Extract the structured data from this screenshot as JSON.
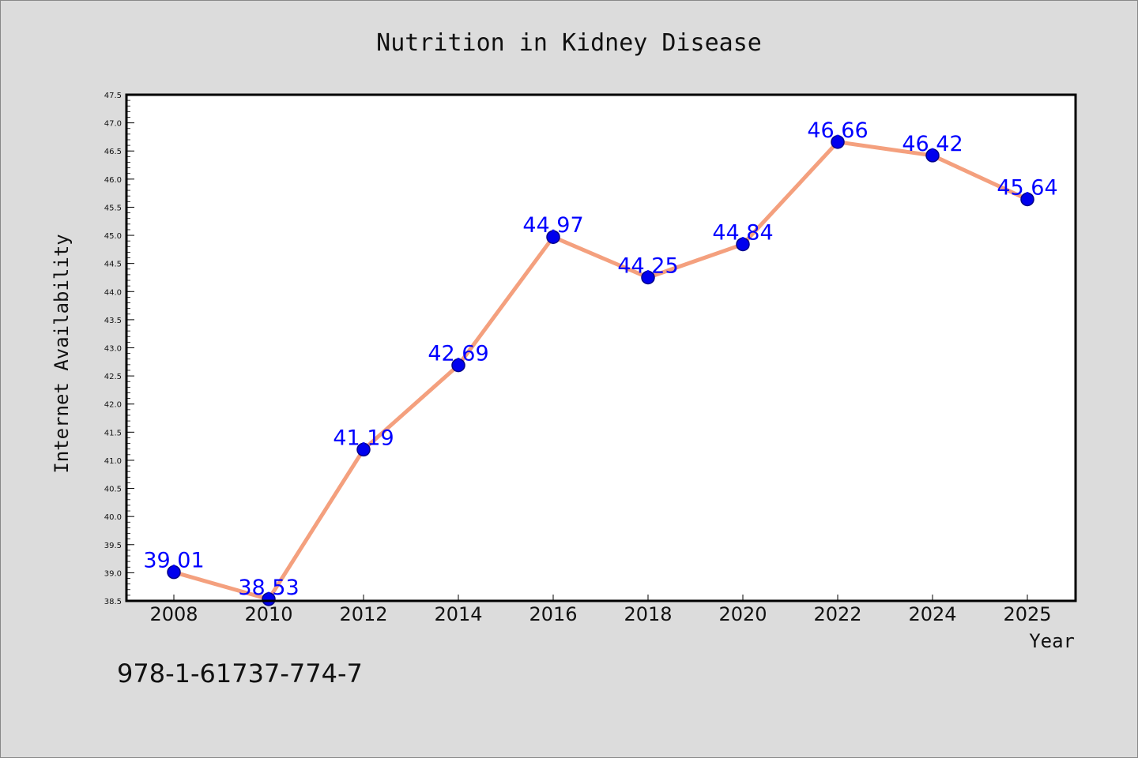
{
  "chart_data": {
    "type": "line",
    "title": "Nutrition in Kidney Disease",
    "xlabel": "Year",
    "ylabel": "Internet Availability",
    "x": [
      "2008",
      "2010",
      "2012",
      "2014",
      "2016",
      "2018",
      "2020",
      "2022",
      "2024",
      "2025"
    ],
    "values": [
      39.01,
      38.53,
      41.19,
      42.69,
      44.97,
      44.25,
      44.84,
      46.66,
      46.42,
      45.64
    ],
    "data_labels": [
      "39.01",
      "38.53",
      "41.19",
      "42.69",
      "44.97",
      "44.25",
      "44.84",
      "46.66",
      "46.42",
      "45.64"
    ],
    "ylim": [
      38.5,
      47.5
    ],
    "ytick_labels": [
      "38.5",
      "39.0",
      "39.5",
      "40.0",
      "40.5",
      "41.0",
      "41.5",
      "42.0",
      "42.5",
      "43.0",
      "43.5",
      "44.0",
      "44.5",
      "45.0",
      "45.5",
      "46.0",
      "46.5",
      "47.0",
      "47.5"
    ],
    "grid": false,
    "legend": false,
    "colors": {
      "line": "#f4a07e",
      "marker": "#0000ee",
      "label": "#0000ff",
      "background": "#dcdcdc",
      "plot_background": "#ffffff"
    }
  },
  "footer_text": "978-1-61737-774-7"
}
